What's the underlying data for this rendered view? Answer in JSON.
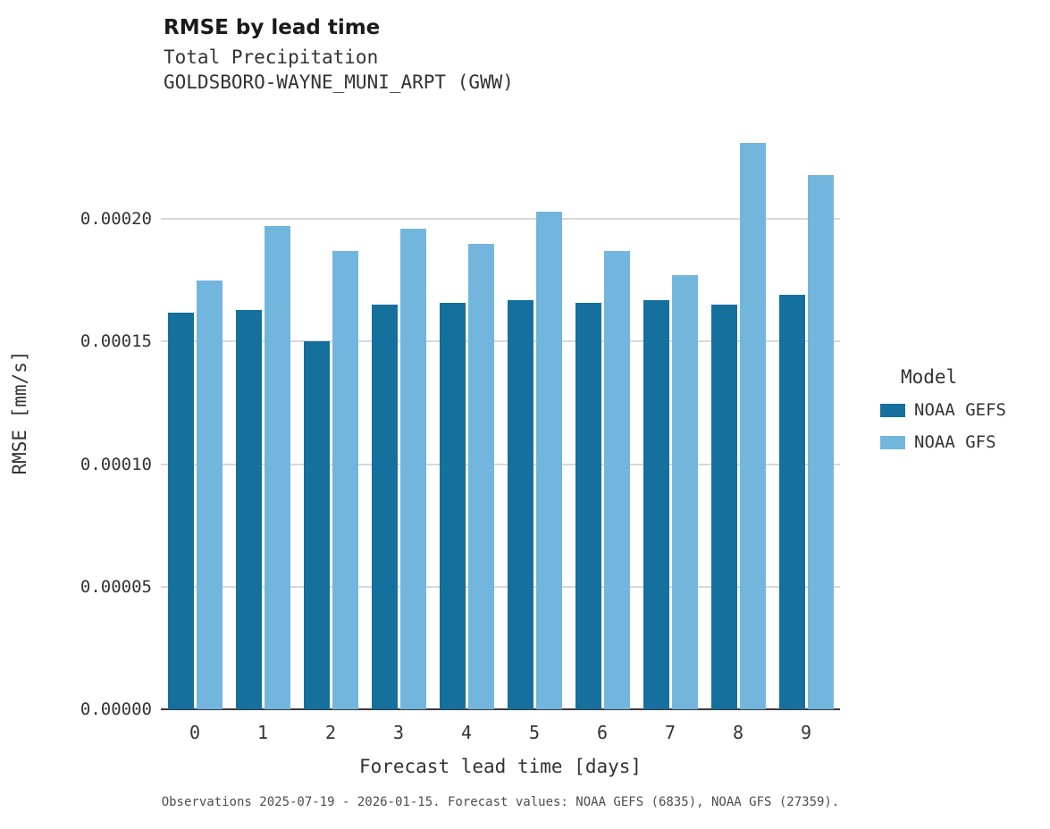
{
  "chart_data": {
    "type": "bar",
    "title": "RMSE by lead time",
    "subtitle_line1": "Total Precipitation",
    "subtitle_line2": "GOLDSBORO-WAYNE_MUNI_ARPT (GWW)",
    "xlabel": "Forecast lead time [days]",
    "ylabel": "RMSE [mm/s]",
    "categories": [
      "0",
      "1",
      "2",
      "3",
      "4",
      "5",
      "6",
      "7",
      "8",
      "9"
    ],
    "series": [
      {
        "name": "NOAA GEFS",
        "color": "#15709e",
        "values": [
          0.000162,
          0.000163,
          0.00015,
          0.000165,
          0.000166,
          0.000167,
          0.000166,
          0.000167,
          0.000165,
          0.000169
        ]
      },
      {
        "name": "NOAA GFS",
        "color": "#72b6dd",
        "values": [
          0.000175,
          0.000197,
          0.000187,
          0.000196,
          0.00019,
          0.000203,
          0.000187,
          0.000177,
          0.000231,
          0.000218
        ]
      }
    ],
    "ylim": [
      0,
      0.000242
    ],
    "yticks": [
      0.0,
      5e-05,
      0.0001,
      0.00015,
      0.0002
    ],
    "ytick_labels": [
      "0.00000",
      "0.00005",
      "0.00010",
      "0.00015",
      "0.00020"
    ],
    "grid": "horizontal",
    "legend_title": "Model",
    "legend_position": "right",
    "caption": "Observations 2025-07-19 - 2026-01-15. Forecast values: NOAA GEFS (6835), NOAA GFS (27359)."
  }
}
